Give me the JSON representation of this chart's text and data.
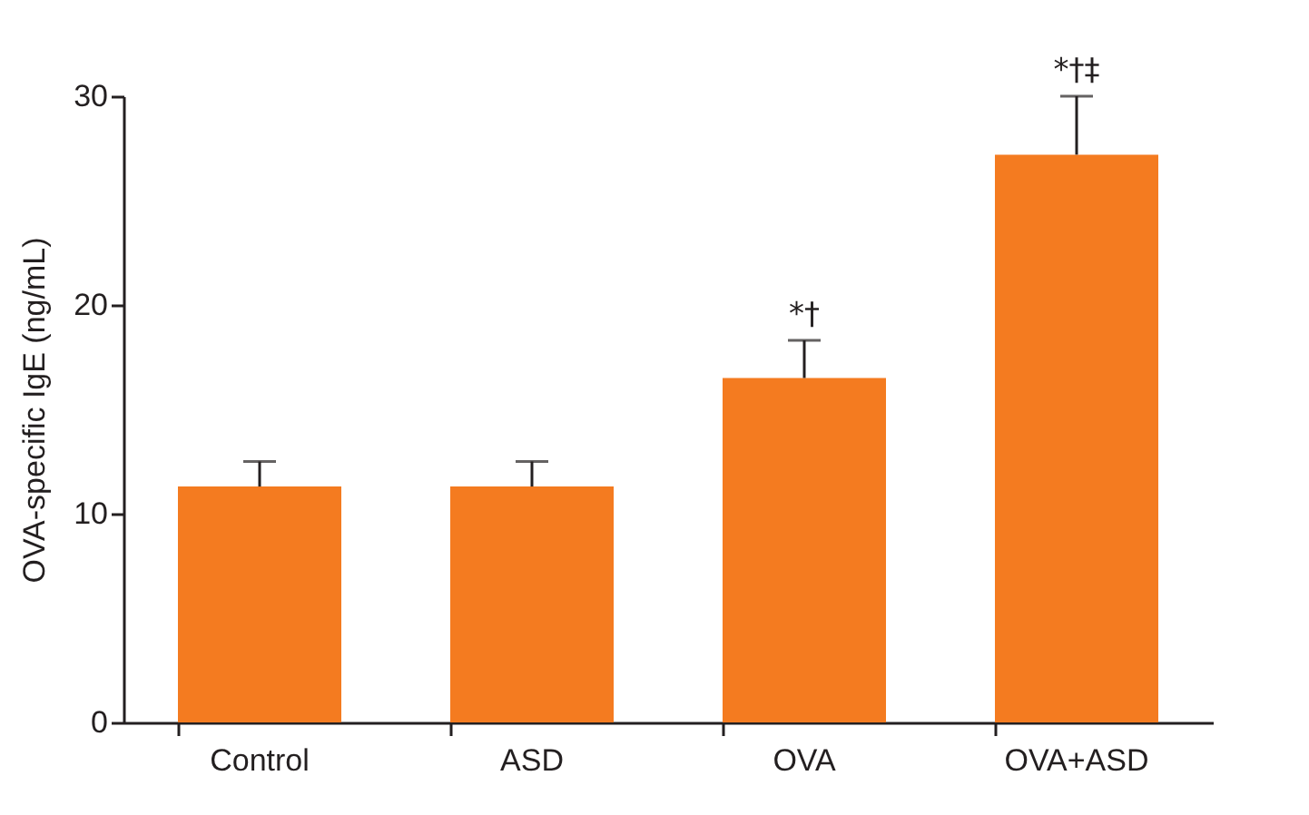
{
  "chart_data": {
    "type": "bar",
    "ylabel": "OVA-specific IgE (ng/mL)",
    "categories": [
      "Control",
      "ASD",
      "OVA",
      "OVA+ASD"
    ],
    "values": [
      11.3,
      11.3,
      16.5,
      27.2
    ],
    "errors": [
      [
        11.3,
        12.5
      ],
      [
        11.3,
        12.5
      ],
      [
        16.5,
        18.3
      ],
      [
        27.2,
        30.0
      ]
    ],
    "color": "#f47b20",
    "ylim": [
      0,
      30
    ],
    "yticks": [
      0,
      10,
      20,
      30
    ],
    "grid": false,
    "annotations": [
      {
        "text": "*†",
        "x": "OVA",
        "y": 18.3
      },
      {
        "text": "*†‡",
        "x": "OVA+ASD",
        "y": 30.0
      }
    ]
  }
}
